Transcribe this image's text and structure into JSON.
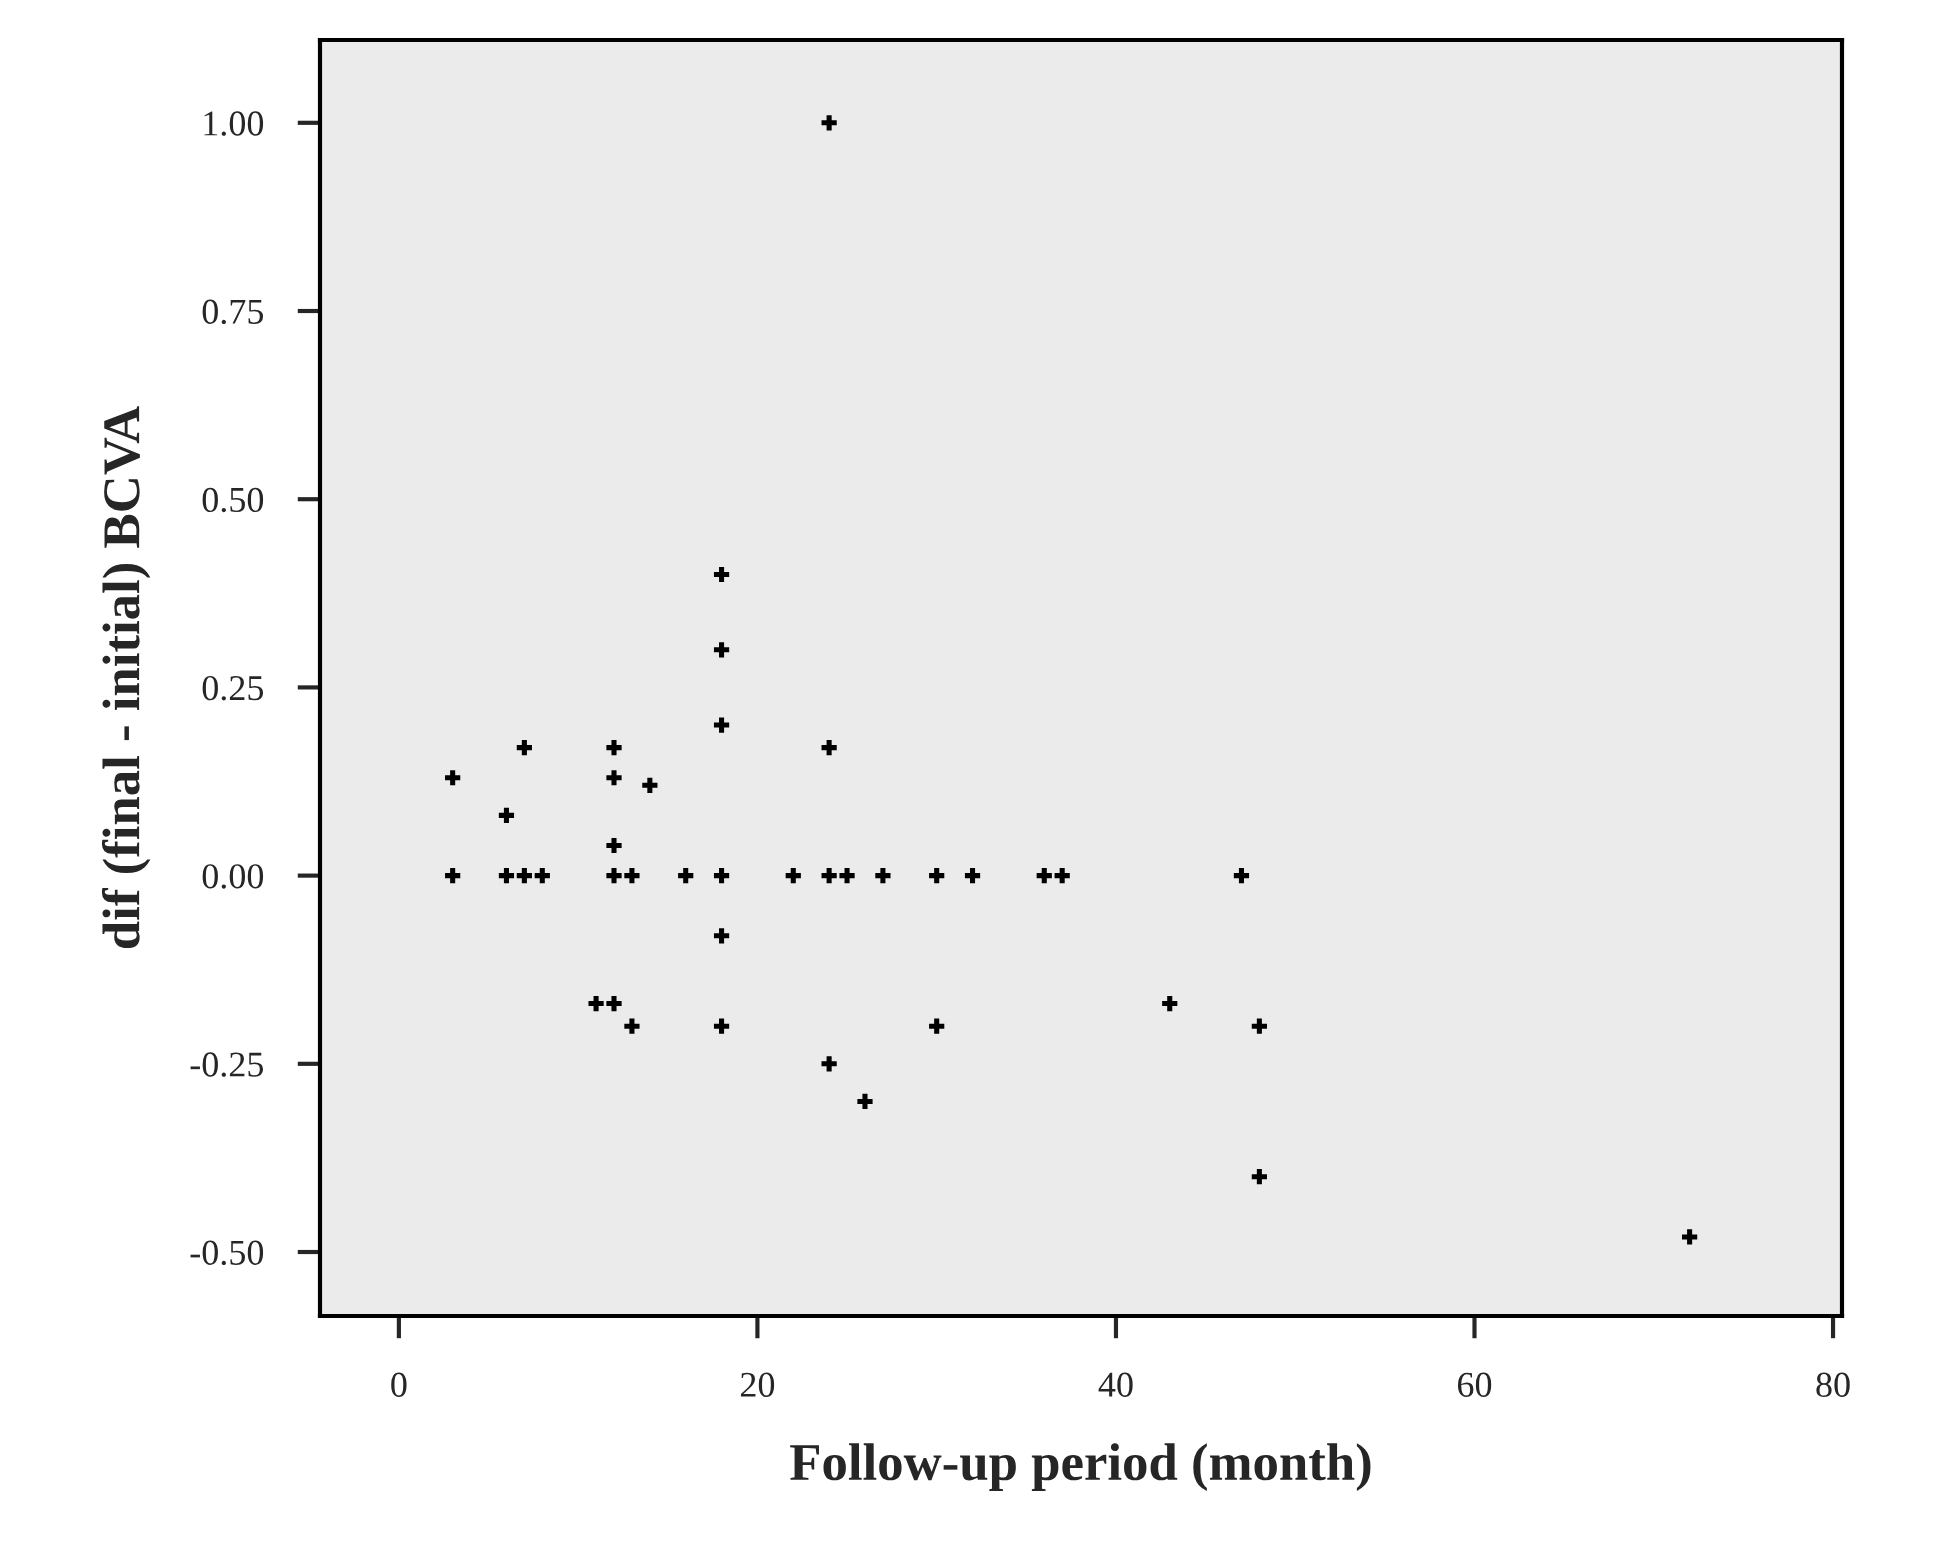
{
  "chart_data": {
    "type": "scatter",
    "xlabel": "Follow-up period (month)",
    "ylabel": "dif (final - initial) BCVA",
    "x": [
      3,
      3,
      6,
      6,
      7,
      7,
      8,
      11,
      12,
      12,
      12,
      12,
      12,
      13,
      13,
      14,
      16,
      18,
      18,
      18,
      18,
      18,
      18,
      22,
      24,
      24,
      24,
      24,
      25,
      26,
      27,
      30,
      30,
      32,
      36,
      37,
      43,
      47,
      48,
      48,
      72
    ],
    "series": [
      {
        "color": "#000000",
        "values": [
          0.13,
          0,
          0.08,
          0,
          0.17,
          0,
          0,
          -0.17,
          0.17,
          0.13,
          0.04,
          0,
          -0.17,
          0,
          -0.2,
          0.12,
          0,
          0.4,
          0.3,
          0.2,
          0,
          -0.08,
          -0.2,
          0,
          1.0,
          0.17,
          0,
          -0.25,
          0,
          -0.3,
          0,
          0,
          -0.2,
          0,
          0,
          0,
          -0.17,
          0,
          -0.2,
          -0.4,
          -0.48
        ]
      }
    ],
    "marker": "cross",
    "xlim": [
      -4.4,
      80.5
    ],
    "xticks": [
      0,
      20,
      40,
      60,
      80
    ],
    "ylim": [
      -0.585,
      1.11
    ],
    "yticks": [
      {
        "value": -0.5,
        "label": "-0.50"
      },
      {
        "value": -0.25,
        "label": "-0.25"
      },
      {
        "value": 0,
        "label": "0.00"
      },
      {
        "value": 0.25,
        "label": "0.25"
      },
      {
        "value": 0.5,
        "label": "0.50"
      },
      {
        "value": 0.75,
        "label": "0.75"
      },
      {
        "value": 1.0,
        "label": "1.00"
      }
    ],
    "grid": false,
    "legend": false
  }
}
